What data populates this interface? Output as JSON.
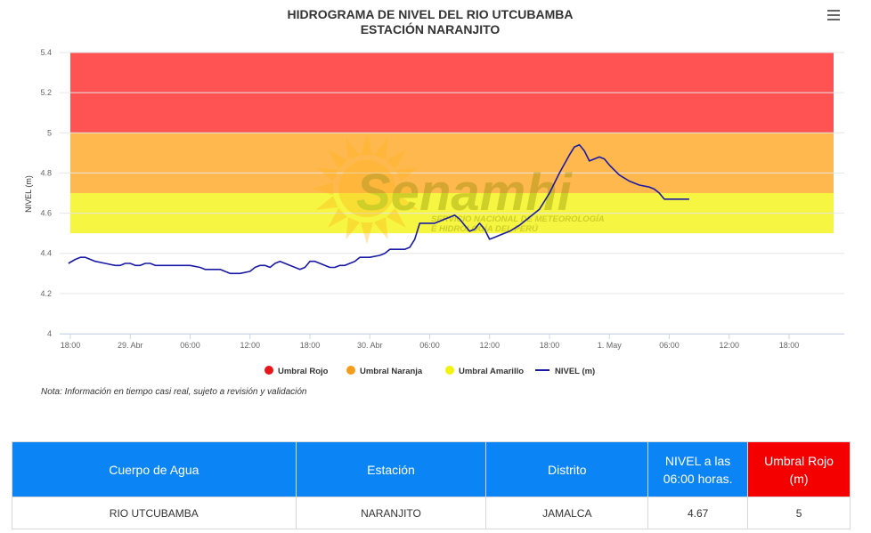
{
  "chart_data": {
    "type": "line",
    "title": "HIDROGRAMA DE NIVEL DEL RIO UTCUBAMBA",
    "subtitle": "ESTACIÓN NARANJITO",
    "ylabel": "NIVEL (m)",
    "ylim": [
      4,
      5.4
    ],
    "y_ticks": [
      "4",
      "4.2",
      "4.4",
      "4.6",
      "4.8",
      "5",
      "5.2",
      "5.4"
    ],
    "x_ticks": [
      {
        "t": 0,
        "label": "18:00"
      },
      {
        "t": 6,
        "label": "29. Abr"
      },
      {
        "t": 12,
        "label": "06:00"
      },
      {
        "t": 18,
        "label": "12:00"
      },
      {
        "t": 24,
        "label": "18:00"
      },
      {
        "t": 30,
        "label": "30. Abr"
      },
      {
        "t": 36,
        "label": "06:00"
      },
      {
        "t": 42,
        "label": "12:00"
      },
      {
        "t": 48,
        "label": "18:00"
      },
      {
        "t": 54,
        "label": "1. May"
      },
      {
        "t": 60,
        "label": "06:00"
      },
      {
        "t": 66,
        "label": "12:00"
      },
      {
        "t": 72,
        "label": "18:00"
      }
    ],
    "x_range": [
      0,
      77
    ],
    "bands": [
      {
        "name": "Umbral Rojo",
        "from": 5.0,
        "to": 5.4,
        "color": "#ff5252"
      },
      {
        "name": "Umbral Naranja",
        "from": 4.7,
        "to": 5.0,
        "color": "#ffb84d"
      },
      {
        "name": "Umbral Amarillo",
        "from": 4.5,
        "to": 4.7,
        "color": "#f5f542"
      }
    ],
    "series": [
      {
        "name": "NIVEL (m)",
        "color": "#1a1aa6",
        "points": [
          [
            -0.2,
            4.35
          ],
          [
            0.5,
            4.37
          ],
          [
            1.0,
            4.38
          ],
          [
            1.5,
            4.38
          ],
          [
            2.0,
            4.37
          ],
          [
            2.5,
            4.36
          ],
          [
            3.5,
            4.35
          ],
          [
            4.5,
            4.34
          ],
          [
            5.0,
            4.34
          ],
          [
            5.5,
            4.35
          ],
          [
            6.0,
            4.35
          ],
          [
            6.5,
            4.34
          ],
          [
            7.0,
            4.34
          ],
          [
            7.5,
            4.35
          ],
          [
            8.0,
            4.35
          ],
          [
            8.5,
            4.34
          ],
          [
            9.0,
            4.34
          ],
          [
            11.0,
            4.34
          ],
          [
            11.5,
            4.34
          ],
          [
            12.0,
            4.34
          ],
          [
            13.0,
            4.33
          ],
          [
            13.5,
            4.32
          ],
          [
            15.0,
            4.32
          ],
          [
            15.5,
            4.31
          ],
          [
            16.0,
            4.3
          ],
          [
            17.0,
            4.3
          ],
          [
            18.0,
            4.31
          ],
          [
            18.5,
            4.33
          ],
          [
            19.0,
            4.34
          ],
          [
            19.5,
            4.34
          ],
          [
            20.0,
            4.33
          ],
          [
            20.5,
            4.35
          ],
          [
            21.0,
            4.36
          ],
          [
            21.5,
            4.35
          ],
          [
            22.0,
            4.34
          ],
          [
            22.5,
            4.33
          ],
          [
            23.0,
            4.32
          ],
          [
            23.5,
            4.33
          ],
          [
            24.0,
            4.36
          ],
          [
            24.5,
            4.36
          ],
          [
            25.0,
            4.35
          ],
          [
            25.5,
            4.34
          ],
          [
            26.0,
            4.33
          ],
          [
            26.5,
            4.33
          ],
          [
            27.0,
            4.34
          ],
          [
            27.5,
            4.34
          ],
          [
            28.0,
            4.35
          ],
          [
            28.5,
            4.36
          ],
          [
            29.0,
            4.38
          ],
          [
            30.0,
            4.38
          ],
          [
            31.0,
            4.39
          ],
          [
            31.5,
            4.4
          ],
          [
            32.0,
            4.42
          ],
          [
            33.5,
            4.42
          ],
          [
            34.0,
            4.43
          ],
          [
            34.5,
            4.47
          ],
          [
            35.0,
            4.55
          ],
          [
            36.5,
            4.55
          ],
          [
            37.0,
            4.56
          ],
          [
            37.5,
            4.57
          ],
          [
            38.0,
            4.58
          ],
          [
            38.5,
            4.59
          ],
          [
            39.0,
            4.57
          ],
          [
            39.5,
            4.54
          ],
          [
            40.0,
            4.51
          ],
          [
            40.5,
            4.52
          ],
          [
            41.0,
            4.55
          ],
          [
            41.5,
            4.52
          ],
          [
            42.0,
            4.47
          ],
          [
            42.5,
            4.48
          ],
          [
            43.0,
            4.49
          ],
          [
            44.0,
            4.51
          ],
          [
            45.0,
            4.54
          ],
          [
            46.0,
            4.58
          ],
          [
            47.0,
            4.62
          ],
          [
            48.0,
            4.7
          ],
          [
            49.0,
            4.8
          ],
          [
            50.0,
            4.89
          ],
          [
            50.5,
            4.93
          ],
          [
            51.0,
            4.94
          ],
          [
            51.5,
            4.91
          ],
          [
            52.0,
            4.86
          ],
          [
            52.5,
            4.87
          ],
          [
            53.0,
            4.88
          ],
          [
            53.5,
            4.87
          ],
          [
            54.0,
            4.84
          ],
          [
            55.0,
            4.79
          ],
          [
            56.0,
            4.76
          ],
          [
            57.0,
            4.74
          ],
          [
            58.0,
            4.73
          ],
          [
            58.5,
            4.72
          ],
          [
            59.0,
            4.7
          ],
          [
            59.5,
            4.67
          ],
          [
            60.0,
            4.67
          ],
          [
            61.5,
            4.67
          ],
          [
            62.0,
            4.67
          ]
        ]
      }
    ],
    "legend": [
      {
        "name": "Umbral Rojo",
        "color": "#e8151b",
        "kind": "dot"
      },
      {
        "name": "Umbral Naranja",
        "color": "#f59d1b",
        "kind": "dot"
      },
      {
        "name": "Umbral Amarillo",
        "color": "#f2f20f",
        "kind": "dot"
      },
      {
        "name": "NIVEL (m)",
        "color": "#1a1aa6",
        "kind": "line"
      }
    ],
    "legend_position": "bottom",
    "grid": true
  },
  "watermark": {
    "brand": "Senamhi",
    "tagline1": "SERVICIO NACIONAL DE METEOROLOGÍA",
    "tagline2": "E HIDROLOGÍA DEL PERÚ"
  },
  "note": "Nota: Información en tiempo casi real, sujeto a revisión y validación",
  "table": {
    "headers": [
      "Cuerpo de Agua",
      "Estación",
      "Distrito",
      "NIVEL a las 06:00 horas.",
      "Umbral Rojo (m)"
    ],
    "row": [
      "RIO UTCUBAMBA",
      "NARANJITO",
      "JAMALCA",
      "4.67",
      "5"
    ],
    "colors": {
      "header": "#0b84f5",
      "header_alert": "#f50000"
    }
  },
  "menu_icon": "hamburger-menu-icon"
}
